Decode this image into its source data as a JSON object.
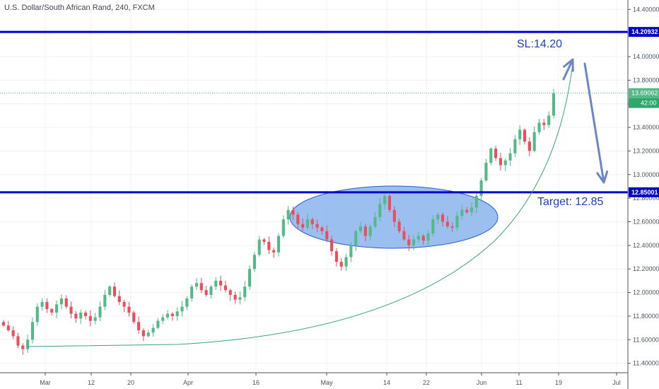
{
  "title": "U.S. Dollar/South African Rand, 240, FXCM",
  "colors": {
    "up": "#53b987",
    "down": "#eb4d5c",
    "level": "#0000cc",
    "arrow": "#6b86c4",
    "ellipse_fill": "#8ab4ec",
    "curve": "#3aa37a",
    "grid": "#eef0f3",
    "axis": "#4c525e"
  },
  "chart_data": {
    "type": "candlestick",
    "symbol": "U.S. Dollar/South African Rand",
    "interval": "240",
    "source": "FXCM",
    "x_ticks": [
      "Mar",
      "12",
      "20",
      "Apr",
      "16",
      "May",
      "14",
      "22",
      "Jun",
      "11",
      "19",
      "Jul"
    ],
    "y_ticks": [
      "14.40000",
      "14.20000",
      "14.00000",
      "13.80000",
      "13.60000",
      "13.40000",
      "13.20000",
      "13.00000",
      "12.80000",
      "12.60000",
      "12.40000",
      "12.20000",
      "12.00000",
      "11.80000",
      "11.60000",
      "11.40000"
    ],
    "ylim": [
      11.32,
      14.48
    ],
    "horizontal_levels": [
      {
        "value": 14.20932,
        "label": "14.20932"
      },
      {
        "value": 12.85001,
        "label": "12.85001"
      }
    ],
    "last_price": {
      "value": 13.69062,
      "label": "13.69062",
      "countdown": "42:00"
    },
    "annotations": [
      {
        "text": "SL:14.20"
      },
      {
        "text": "Target: 12.85"
      }
    ],
    "series": {
      "close": [
        11.72,
        11.68,
        11.63,
        11.55,
        11.52,
        11.6,
        11.75,
        11.88,
        11.92,
        11.86,
        11.83,
        11.9,
        11.95,
        11.88,
        11.82,
        11.78,
        11.83,
        11.8,
        11.76,
        11.79,
        11.88,
        11.98,
        12.05,
        11.97,
        11.92,
        11.88,
        11.83,
        11.75,
        11.68,
        11.63,
        11.66,
        11.7,
        11.76,
        11.79,
        11.82,
        11.8,
        11.84,
        11.88,
        11.95,
        12.05,
        12.08,
        12.02,
        11.98,
        12.05,
        12.1,
        12.06,
        12.02,
        11.98,
        11.94,
        11.96,
        12.05,
        12.2,
        12.32,
        12.45,
        12.43,
        12.36,
        12.34,
        12.48,
        12.62,
        12.7,
        12.66,
        12.58,
        12.55,
        12.62,
        12.58,
        12.55,
        12.52,
        12.45,
        12.35,
        12.26,
        12.22,
        12.3,
        12.4,
        12.52,
        12.56,
        12.48,
        12.56,
        12.64,
        12.75,
        12.82,
        12.7,
        12.6,
        12.52,
        12.45,
        12.4,
        12.45,
        12.48,
        12.44,
        12.5,
        12.62,
        12.66,
        12.6,
        12.56,
        12.55,
        12.65,
        12.7,
        12.68,
        12.72,
        12.82,
        12.95,
        13.1,
        13.22,
        13.14,
        13.08,
        13.12,
        13.18,
        13.3,
        13.38,
        13.28,
        13.2,
        13.36,
        13.44,
        13.42,
        13.5,
        13.69
      ]
    }
  }
}
